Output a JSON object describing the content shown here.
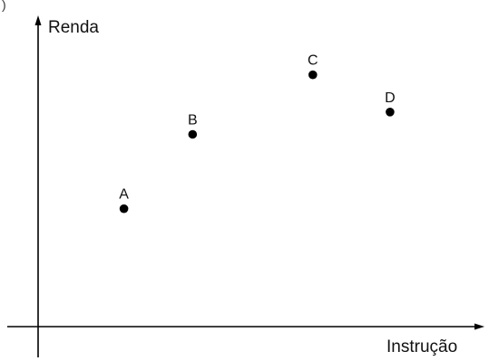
{
  "corner_mark": ")",
  "chart_data": {
    "type": "scatter",
    "xlabel": "Instrução",
    "ylabel": "Renda",
    "points": [
      {
        "label": "A",
        "x": 1.0,
        "y": 1.0
      },
      {
        "label": "B",
        "x": 1.8,
        "y": 2.0
      },
      {
        "label": "C",
        "x": 3.2,
        "y": 2.8
      },
      {
        "label": "D",
        "x": 4.1,
        "y": 2.3
      }
    ],
    "xlim": [
      0,
      5.2
    ],
    "ylim": [
      -1.0,
      3.6
    ],
    "grid": false,
    "legend": "none"
  }
}
